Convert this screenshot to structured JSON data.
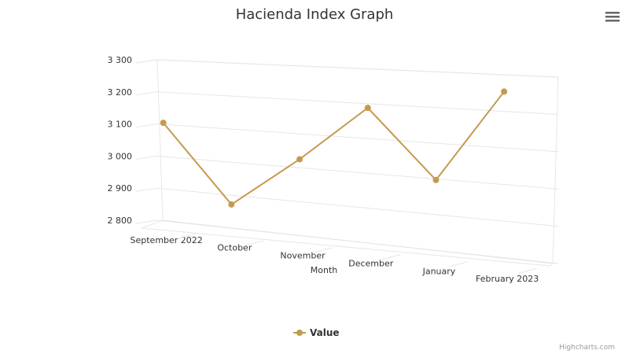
{
  "chart_data": {
    "type": "line",
    "title": "Hacienda Index Graph",
    "x_label": "Month",
    "categories": [
      "September 2022",
      "October",
      "November",
      "December",
      "January",
      "February 2023"
    ],
    "series": [
      {
        "name": "Value",
        "color": "#c49a4f",
        "values": [
          3105,
          2872,
          3025,
          3188,
          2997,
          3254
        ]
      }
    ],
    "ylim": [
      2800,
      3300
    ],
    "yticks": [
      {
        "value": 2800,
        "label": "2 800"
      },
      {
        "value": 2900,
        "label": "2 900"
      },
      {
        "value": 3000,
        "label": "3 000"
      },
      {
        "value": 3100,
        "label": "3 100"
      },
      {
        "value": 3200,
        "label": "3 200"
      },
      {
        "value": 3300,
        "label": "3 300"
      }
    ],
    "grid": true,
    "legend": "bottom",
    "credits": "Highcharts.com"
  }
}
